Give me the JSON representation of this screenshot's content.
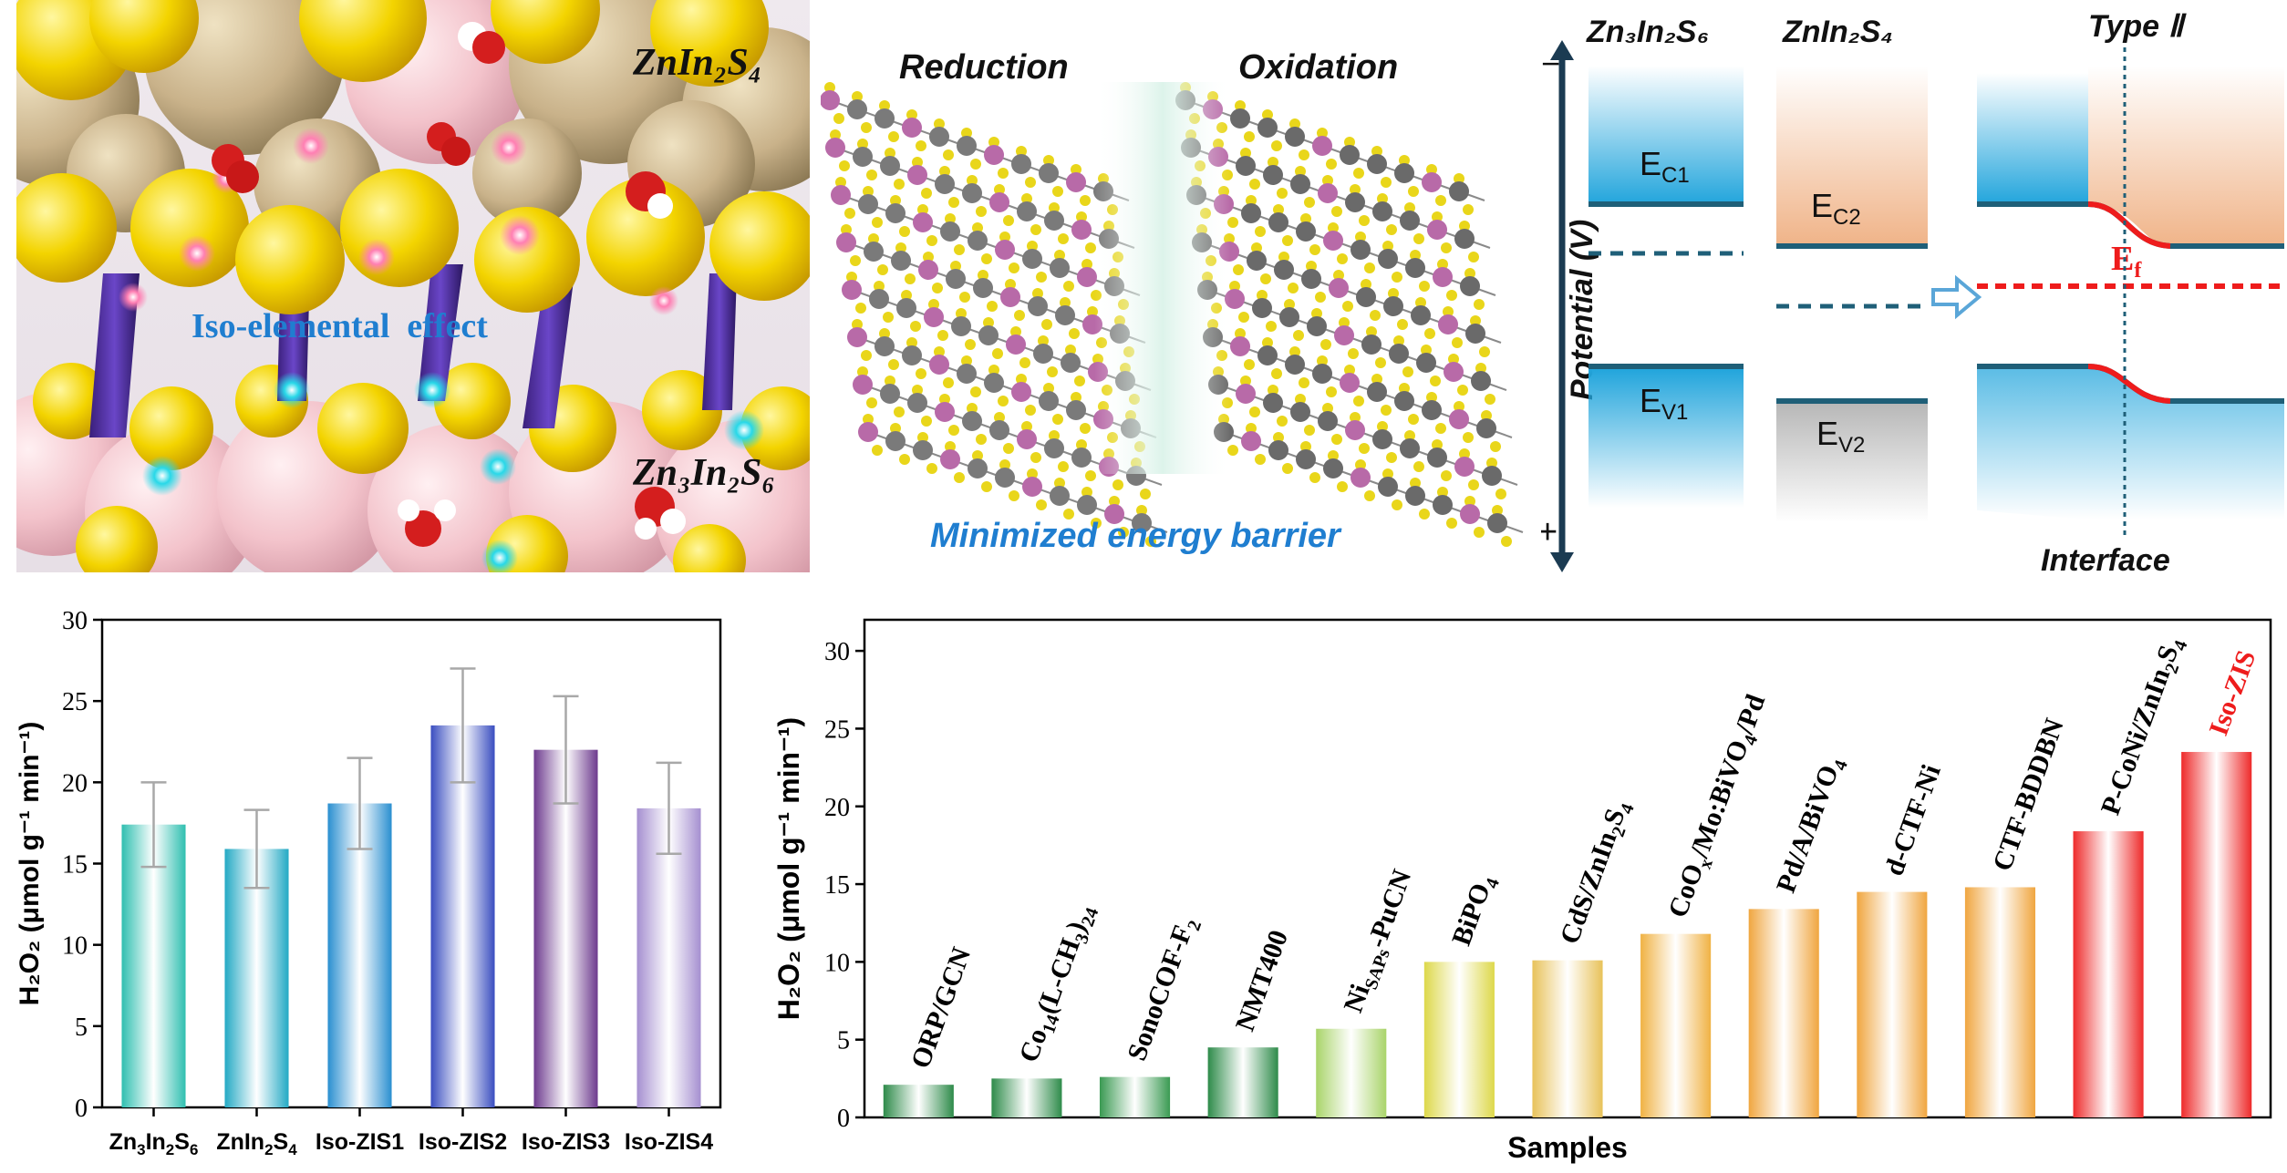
{
  "illustration": {
    "top_label": "ZnIn₂S₄",
    "bottom_label": "Zn₃In₂S₆",
    "effect_label": "Iso-elemental  effect"
  },
  "structure": {
    "left_label": "Reduction",
    "right_label": "Oxidation",
    "caption": "Minimized energy barrier"
  },
  "band_diagram": {
    "material_1": "Zn₃In₂S₆",
    "material_2": "ZnIn₂S₄",
    "type_label": "Type Ⅱ",
    "axis_label": "Potential (V)",
    "minus": "−",
    "plus": "+",
    "ec1": "E",
    "ec1_sub": "C1",
    "ec2": "E",
    "ec2_sub": "C2",
    "ev1": "E",
    "ev1_sub": "V1",
    "ev2": "E",
    "ev2_sub": "V2",
    "ef": "E",
    "ef_sub": "f",
    "interface_label": "Interface",
    "colors": {
      "blue": "#3aa6d8",
      "orange": "#f0b489",
      "gray": "#b8b8b8",
      "ef": "#ee1c1c",
      "line": "#1f5f78"
    }
  },
  "chart_data": [
    {
      "type": "bar",
      "categories": [
        "Zn3In2S6",
        "ZnIn2S4",
        "Iso-ZIS1",
        "Iso-ZIS2",
        "Iso-ZIS3",
        "Iso-ZIS4"
      ],
      "tick_labels": [
        [
          "Zn",
          "3",
          "In",
          "2",
          "S",
          "6"
        ],
        [
          "ZnIn",
          "2",
          "S",
          "4"
        ],
        [
          "Iso-ZIS1"
        ],
        [
          "Iso-ZIS2"
        ],
        [
          "Iso-ZIS3"
        ],
        [
          "Iso-ZIS4"
        ]
      ],
      "values": [
        17.4,
        15.9,
        18.7,
        23.5,
        22.0,
        18.4
      ],
      "errors": [
        2.6,
        2.4,
        2.8,
        3.5,
        3.3,
        2.8
      ],
      "colors": [
        "#2fbfb0",
        "#23a9c4",
        "#2a8fd0",
        "#3a4ec0",
        "#6d3a8e",
        "#a58fd0"
      ],
      "ylabel": "H₂O₂ (μmol g⁻¹ min⁻¹)",
      "ylim": [
        0,
        30
      ],
      "yticks": [
        0,
        5,
        10,
        15,
        20,
        25,
        30
      ],
      "grid": false
    },
    {
      "type": "bar",
      "categories": [
        "ORP/GCN",
        "Co14(L-CH3)24",
        "SonoCOF-F2",
        "NMT400",
        "NiSAPs-PuCN",
        "BiPO4",
        "CdS/ZnIn2S4",
        "CoOx/Mo:BiVO4/Pd",
        "Pd/A/BiVO4",
        "d-CTF-Ni",
        "CTF-BDDBN",
        "P-CoNi/ZnIn2S4",
        "Iso-ZIS"
      ],
      "bar_labels": [
        [
          [
            "ORP/GCN",
            ""
          ]
        ],
        [
          [
            "Co",
            ""
          ],
          [
            "14",
            "sub"
          ],
          [
            "(L-CH",
            ""
          ],
          [
            "3",
            "sub"
          ],
          [
            ")",
            ""
          ],
          [
            "24",
            "sub"
          ]
        ],
        [
          [
            "SonoCOF-F",
            ""
          ],
          [
            "2",
            "sub"
          ]
        ],
        [
          [
            "NMT400",
            ""
          ]
        ],
        [
          [
            "Ni",
            ""
          ],
          [
            "SAPs",
            "sub"
          ],
          [
            "-PuCN",
            ""
          ]
        ],
        [
          [
            "BiPO",
            ""
          ],
          [
            "4",
            "sub"
          ]
        ],
        [
          [
            "CdS/ZnIn",
            ""
          ],
          [
            "2",
            "sub"
          ],
          [
            "S",
            ""
          ],
          [
            "4",
            "sub"
          ]
        ],
        [
          [
            "CoO",
            ""
          ],
          [
            "x",
            "sub"
          ],
          [
            "/Mo:BiVO",
            ""
          ],
          [
            "4",
            "sub"
          ],
          [
            "/Pd",
            ""
          ]
        ],
        [
          [
            "Pd/A/BiVO",
            ""
          ],
          [
            "4",
            "sub"
          ]
        ],
        [
          [
            "d-CTF-Ni",
            ""
          ]
        ],
        [
          [
            "CTF-BDDBN",
            ""
          ]
        ],
        [
          [
            "P-CoNi/ZnIn",
            ""
          ],
          [
            "2",
            "sub"
          ],
          [
            "S",
            ""
          ],
          [
            "4",
            "sub"
          ]
        ],
        [
          [
            "Iso-ZIS",
            ""
          ]
        ]
      ],
      "values": [
        2.1,
        2.5,
        2.6,
        4.5,
        5.7,
        10.0,
        10.1,
        11.8,
        13.4,
        14.5,
        14.8,
        18.4,
        23.5
      ],
      "colors": [
        "#2e8b4a",
        "#2e8b4a",
        "#3a9a52",
        "#2e8b4a",
        "#a9d46a",
        "#ddd84a",
        "#e8c25a",
        "#f0b244",
        "#f0a640",
        "#f0a640",
        "#f0a640",
        "#ee2a2a",
        "#ee2a2a"
      ],
      "highlight_label_color": "#ee1c1c",
      "xlabel": "Samples",
      "ylabel": "H₂O₂ (μmol g⁻¹ min⁻¹)",
      "ylim": [
        0,
        32
      ],
      "yticks": [
        0,
        5,
        10,
        15,
        20,
        25,
        30
      ],
      "grid": false
    }
  ]
}
